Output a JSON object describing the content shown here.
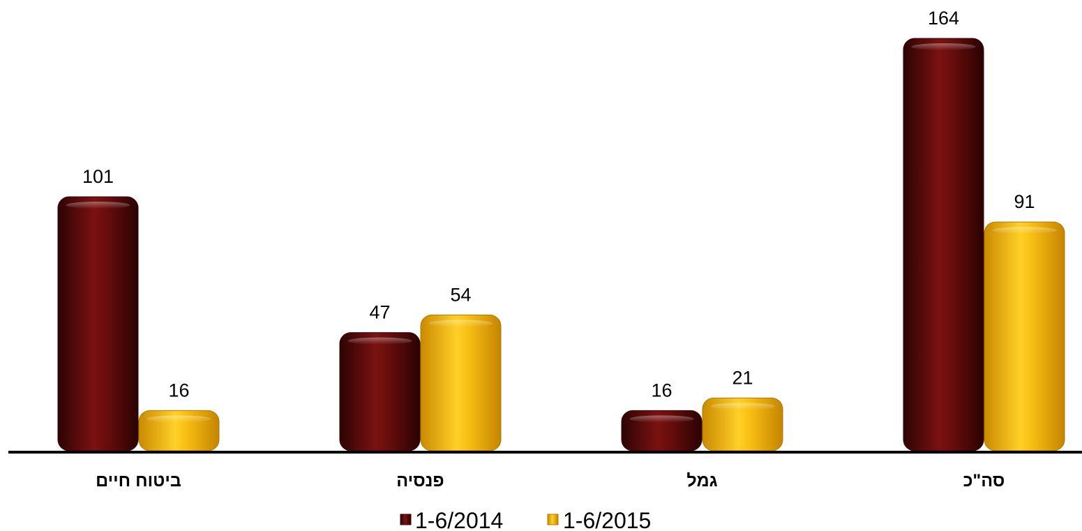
{
  "chart_data": {
    "type": "bar",
    "title": "",
    "xlabel": "",
    "ylabel": "",
    "categories": [
      "ביטוח חיים",
      "פנסיה",
      "גמל",
      "סה\"כ"
    ],
    "series": [
      {
        "name": "1-6/2014",
        "values": [
          101,
          47,
          16,
          164
        ],
        "color": "#6b0c0c"
      },
      {
        "name": "1-6/2015",
        "values": [
          16,
          54,
          21,
          91
        ],
        "color": "#f5b800"
      }
    ],
    "ylim": [
      0,
      164
    ],
    "grid": false,
    "legend_position": "bottom",
    "data_labels": true
  }
}
